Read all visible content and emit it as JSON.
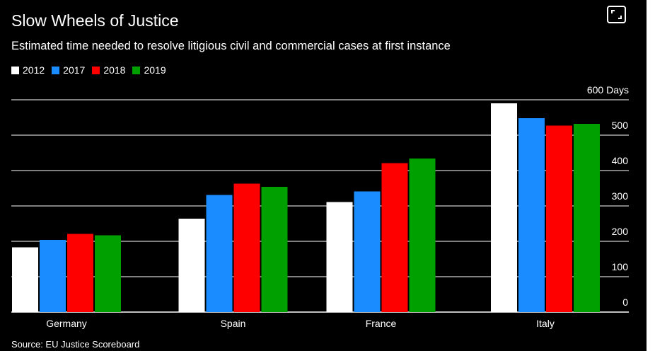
{
  "chart_data": {
    "type": "bar",
    "title": "Slow Wheels of Justice",
    "subtitle": "Estimated time needed to resolve litigious civil and commercial cases at first instance",
    "source": "Source: EU Justice Scoreboard",
    "categories": [
      "Germany",
      "Spain",
      "France",
      "Italy"
    ],
    "series": [
      {
        "name": "2012",
        "color": "#ffffff",
        "values": [
          183,
          264,
          311,
          590
        ]
      },
      {
        "name": "2017",
        "color": "#1a8cff",
        "values": [
          204,
          331,
          341,
          548
        ]
      },
      {
        "name": "2018",
        "color": "#ff0000",
        "values": [
          221,
          363,
          421,
          527
        ]
      },
      {
        "name": "2019",
        "color": "#00a000",
        "values": [
          217,
          354,
          434,
          532
        ]
      }
    ],
    "yticks": [
      {
        "value": 0,
        "label": "0"
      },
      {
        "value": 100,
        "label": "100"
      },
      {
        "value": 200,
        "label": "200"
      },
      {
        "value": 300,
        "label": "300"
      },
      {
        "value": 400,
        "label": "400"
      },
      {
        "value": 500,
        "label": "500"
      },
      {
        "value": 600,
        "label": "600 Days"
      }
    ],
    "ylim": [
      0,
      600
    ],
    "xlabel": "",
    "ylabel": "Days",
    "grid": true,
    "legend_position": "top-left"
  },
  "controls": {
    "expand_icon": "expand-icon"
  }
}
